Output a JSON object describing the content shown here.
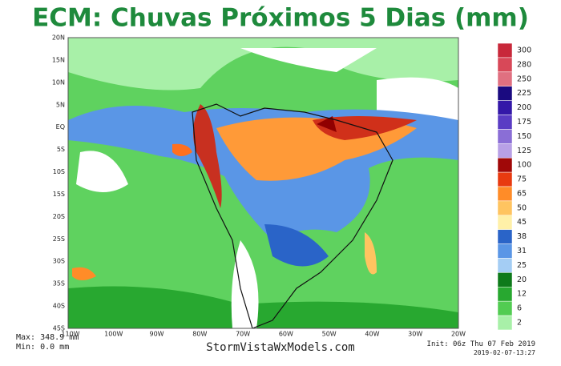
{
  "header": {
    "title": "ECM: Chuvas Próximos 5 Dias (mm)"
  },
  "map": {
    "lat_labels": [
      "20N",
      "15N",
      "10N",
      "5N",
      "EQ",
      "5S",
      "10S",
      "15S",
      "20S",
      "25S",
      "30S",
      "35S",
      "40S",
      "45S"
    ],
    "lon_labels": [
      "110W",
      "100W",
      "90W",
      "80W",
      "70W",
      "60W",
      "50W",
      "40W",
      "30W",
      "20W"
    ]
  },
  "legend": {
    "levels": [
      "300",
      "280",
      "250",
      "225",
      "200",
      "175",
      "150",
      "125",
      "100",
      "75",
      "65",
      "50",
      "45",
      "38",
      "31",
      "25",
      "20",
      "12",
      "6",
      "2"
    ],
    "colors": [
      "#c8283a",
      "#d84858",
      "#e07080",
      "#1a0a80",
      "#3418a8",
      "#5a3cc4",
      "#8a6ed6",
      "#b8a0e6",
      "#a00808",
      "#e83a10",
      "#ff8c28",
      "#ffc460",
      "#fff0a8",
      "#2a64c8",
      "#5a96e6",
      "#a4cdf4",
      "#0e7a1a",
      "#28a830",
      "#52cc52",
      "#a8f0a8"
    ]
  },
  "footer": {
    "max": "Max: 348.9 mm",
    "min": "Min: 0.0 mm",
    "site": "StormVistaWxModels.com",
    "init": "Init: 06z Thu 07 Feb 2019",
    "stamp": "2019-02-07-13:27"
  }
}
